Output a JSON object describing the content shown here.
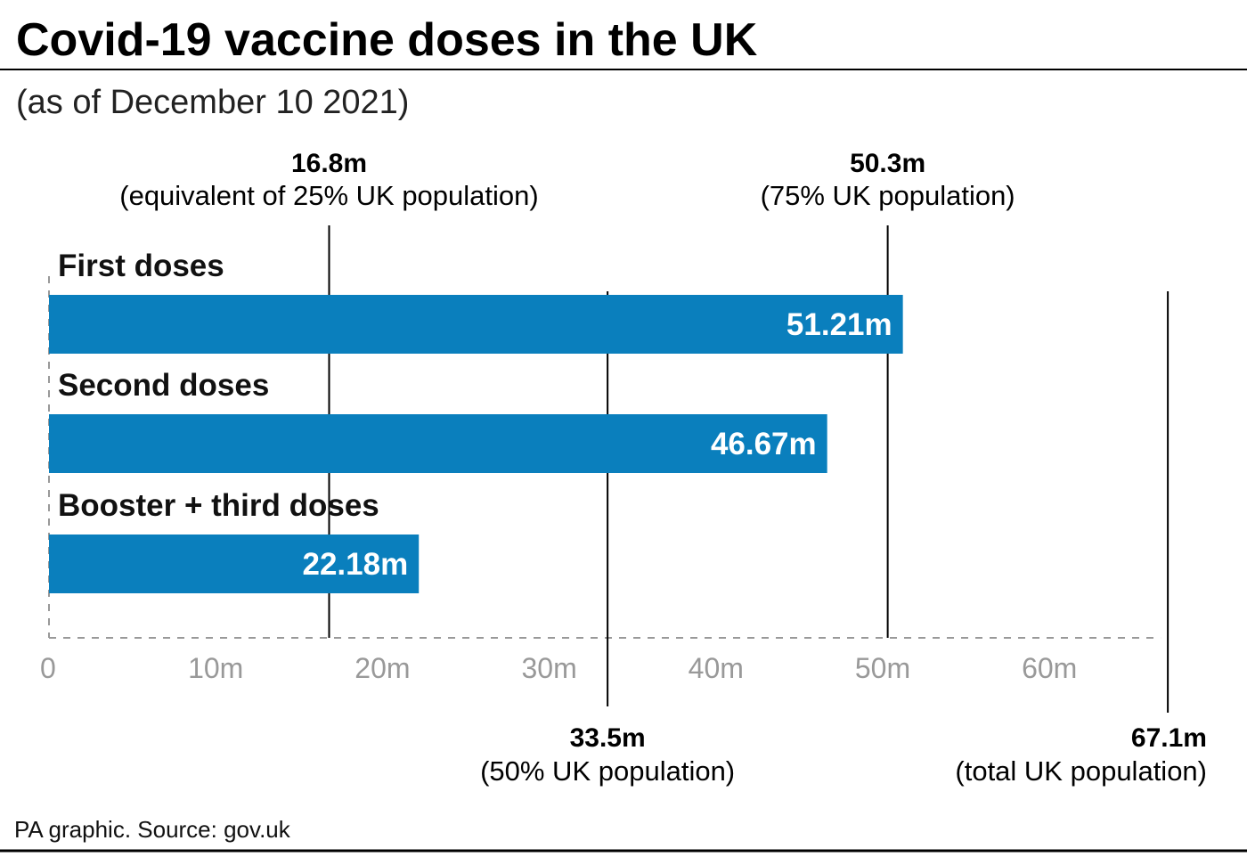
{
  "title": "Covid-19 vaccine doses in the UK",
  "subtitle": "(as of December 10 2021)",
  "footer": "PA graphic. Source: gov.uk",
  "colors": {
    "bar": "#0a7fbd",
    "axis": "#999999",
    "reference_line": "#000000"
  },
  "chart_data": {
    "type": "bar",
    "orientation": "horizontal",
    "categories": [
      "First doses",
      "Second doses",
      "Booster + third doses"
    ],
    "values": [
      51.21,
      46.67,
      22.18
    ],
    "value_labels": [
      "51.21m",
      "46.67m",
      "22.18m"
    ],
    "xlim": [
      0,
      67.1
    ],
    "x_ticks": [
      0,
      10,
      20,
      30,
      40,
      50,
      60
    ],
    "x_tick_labels": [
      "0",
      "10m",
      "20m",
      "30m",
      "40m",
      "50m",
      "60m"
    ],
    "grid": false,
    "reference_lines": [
      {
        "value": 16.8,
        "label": "16.8m",
        "note": "(equivalent of 25% UK population)",
        "position": "top"
      },
      {
        "value": 50.3,
        "label": "50.3m",
        "note": "(75% UK population)",
        "position": "top"
      },
      {
        "value": 33.5,
        "label": "33.5m",
        "note": "(50% UK population)",
        "position": "bottom"
      },
      {
        "value": 67.1,
        "label": "67.1m",
        "note": "(total UK population)",
        "position": "bottom"
      }
    ]
  }
}
